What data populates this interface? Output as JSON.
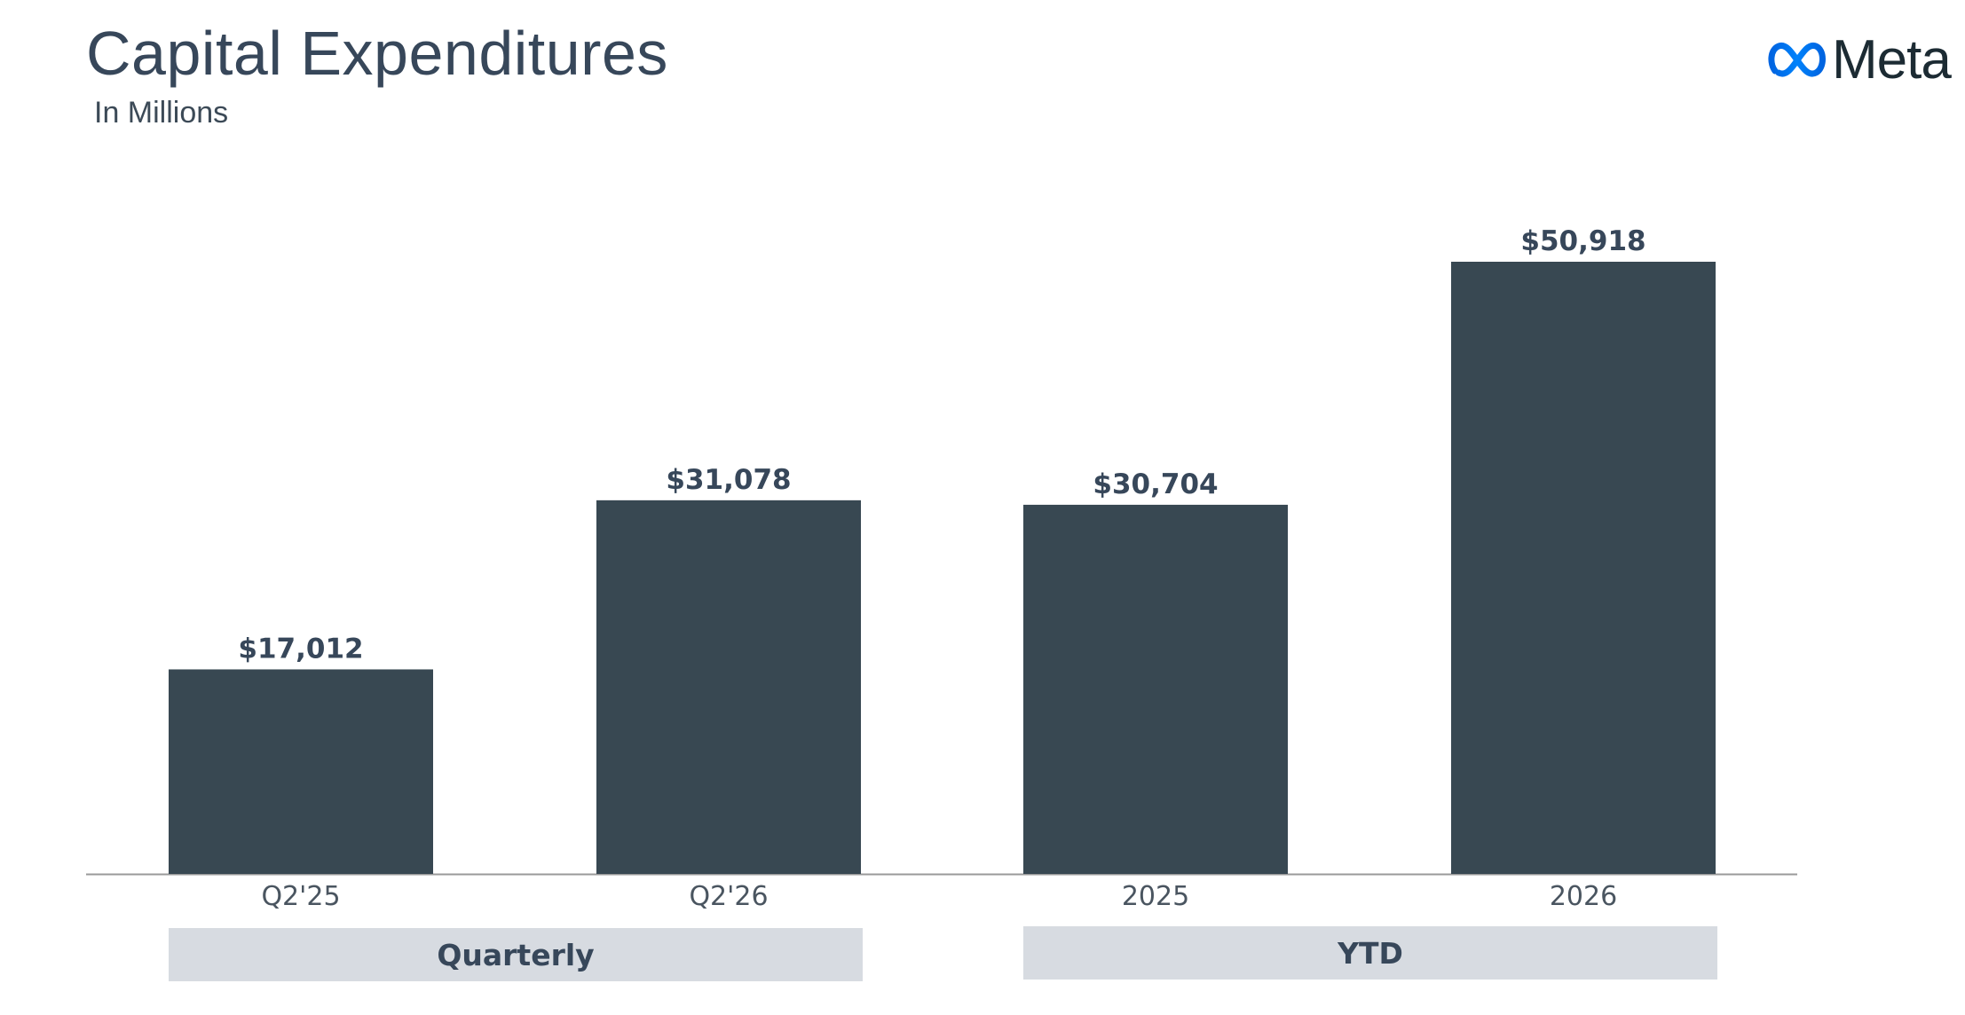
{
  "header": {
    "title": "Capital Expenditures",
    "subtitle": "In Millions",
    "logo_text": "Meta",
    "logo_icon": "meta-infinity-icon"
  },
  "colors": {
    "bar": "#384852",
    "group_box": "#d7dbe1",
    "logo_blue": "#0866ff"
  },
  "chart_data": {
    "type": "bar",
    "title": "Capital Expenditures",
    "subtitle": "In Millions",
    "categories": [
      "Q2'25",
      "Q2'26",
      "2025",
      "2026"
    ],
    "values": [
      17012,
      31078,
      30704,
      50918
    ],
    "data_labels": [
      "$17,012",
      "$31,078",
      "$30,704",
      "$50,918"
    ],
    "groups": [
      {
        "label": "Quarterly",
        "categories": [
          "Q2'25",
          "Q2'26"
        ]
      },
      {
        "label": "YTD",
        "categories": [
          "2025",
          "2026"
        ]
      }
    ],
    "xlabel": "",
    "ylabel": "",
    "ylim": [
      0,
      52000
    ],
    "grid": false,
    "legend": "none"
  }
}
